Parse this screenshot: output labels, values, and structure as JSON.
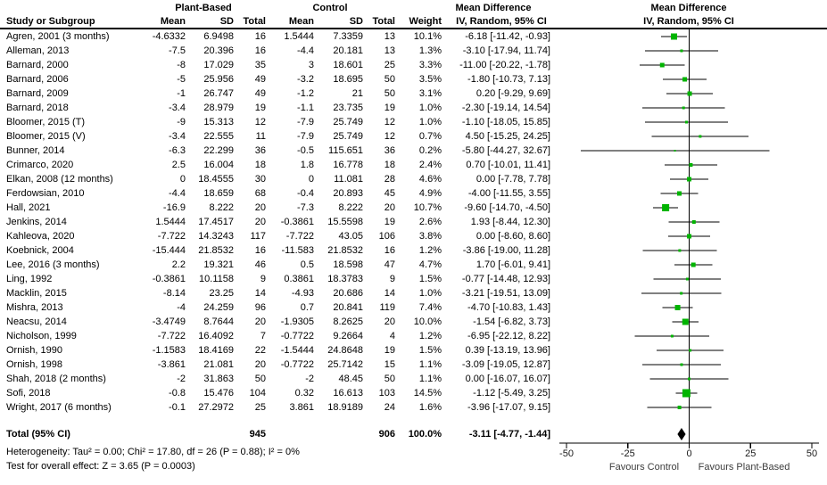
{
  "columns": {
    "study": "Study or Subgroup",
    "pb_group": "Plant-Based",
    "c_group": "Control",
    "mean": "Mean",
    "sd": "SD",
    "total": "Total",
    "weight": "Weight",
    "md_title": "Mean Difference",
    "md_sub": "IV, Random, 95% CI",
    "plot_title": "Mean Difference",
    "plot_sub": "IV, Random, 95% CI"
  },
  "totals": {
    "label": "Total (95% CI)",
    "pb_total": "945",
    "c_total": "906",
    "weight": "100.0%",
    "ci_text": "-3.11 [-4.77, -1.44]"
  },
  "footer": {
    "heterogeneity": "Heterogeneity: Tau² = 0.00; Chi² = 17.80, df = 26 (P = 0.88); I² = 0%",
    "overall_effect": "Test for overall effect: Z = 3.65 (P = 0.0003)",
    "favours_left": "Favours Control",
    "favours_right": "Favours Plant-Based"
  },
  "chart_data": {
    "type": "forest",
    "effect_measure": "Mean Difference, IV, Random, 95% CI",
    "x_axis": {
      "min": -50,
      "max": 50,
      "ticks": [
        -50,
        -25,
        0,
        25,
        50
      ],
      "tick_labels": [
        "-50",
        "-25",
        "0",
        "25",
        "50"
      ]
    },
    "marker_color": "#00b400",
    "line_color": "#000000",
    "studies": [
      {
        "name": "Agren, 2001 (3 months)",
        "pb_mean": "-4.6332",
        "pb_sd": "6.9498",
        "pb_n": "16",
        "c_mean": "1.5444",
        "c_sd": "7.3359",
        "c_n": "13",
        "weight": "10.1%",
        "ci_text": "-6.18 [-11.42, -0.93]",
        "md": -6.18,
        "lo": -11.42,
        "hi": -0.93,
        "w": 10.1
      },
      {
        "name": "Alleman, 2013",
        "pb_mean": "-7.5",
        "pb_sd": "20.396",
        "pb_n": "16",
        "c_mean": "-4.4",
        "c_sd": "20.181",
        "c_n": "13",
        "weight": "1.3%",
        "ci_text": "-3.10 [-17.94, 11.74]",
        "md": -3.1,
        "lo": -17.94,
        "hi": 11.74,
        "w": 1.3
      },
      {
        "name": "Barnard, 2000",
        "pb_mean": "-8",
        "pb_sd": "17.029",
        "pb_n": "35",
        "c_mean": "3",
        "c_sd": "18.601",
        "c_n": "25",
        "weight": "3.3%",
        "ci_text": "-11.00 [-20.22, -1.78]",
        "md": -11,
        "lo": -20.22,
        "hi": -1.78,
        "w": 3.3
      },
      {
        "name": "Barnard, 2006",
        "pb_mean": "-5",
        "pb_sd": "25.956",
        "pb_n": "49",
        "c_mean": "-3.2",
        "c_sd": "18.695",
        "c_n": "50",
        "weight": "3.5%",
        "ci_text": "-1.80 [-10.73, 7.13]",
        "md": -1.8,
        "lo": -10.73,
        "hi": 7.13,
        "w": 3.5
      },
      {
        "name": "Barnard, 2009",
        "pb_mean": "-1",
        "pb_sd": "26.747",
        "pb_n": "49",
        "c_mean": "-1.2",
        "c_sd": "21",
        "c_n": "50",
        "weight": "3.1%",
        "ci_text": "0.20 [-9.29, 9.69]",
        "md": 0.2,
        "lo": -9.29,
        "hi": 9.69,
        "w": 3.1
      },
      {
        "name": "Barnard, 2018",
        "pb_mean": "-3.4",
        "pb_sd": "28.979",
        "pb_n": "19",
        "c_mean": "-1.1",
        "c_sd": "23.735",
        "c_n": "19",
        "weight": "1.0%",
        "ci_text": "-2.30 [-19.14, 14.54]",
        "md": -2.3,
        "lo": -19.14,
        "hi": 14.54,
        "w": 1.0
      },
      {
        "name": "Bloomer, 2015 (T)",
        "pb_mean": "-9",
        "pb_sd": "15.313",
        "pb_n": "12",
        "c_mean": "-7.9",
        "c_sd": "25.749",
        "c_n": "12",
        "weight": "1.0%",
        "ci_text": "-1.10 [-18.05, 15.85]",
        "md": -1.1,
        "lo": -18.05,
        "hi": 15.85,
        "w": 1.0
      },
      {
        "name": "Bloomer, 2015 (V)",
        "pb_mean": "-3.4",
        "pb_sd": "22.555",
        "pb_n": "11",
        "c_mean": "-7.9",
        "c_sd": "25.749",
        "c_n": "12",
        "weight": "0.7%",
        "ci_text": "4.50 [-15.25, 24.25]",
        "md": 4.5,
        "lo": -15.25,
        "hi": 24.25,
        "w": 0.7
      },
      {
        "name": "Bunner, 2014",
        "pb_mean": "-6.3",
        "pb_sd": "22.299",
        "pb_n": "36",
        "c_mean": "-0.5",
        "c_sd": "115.651",
        "c_n": "36",
        "weight": "0.2%",
        "ci_text": "-5.80 [-44.27, 32.67]",
        "md": -5.8,
        "lo": -44.27,
        "hi": 32.67,
        "w": 0.2
      },
      {
        "name": "Crimarco, 2020",
        "pb_mean": "2.5",
        "pb_sd": "16.004",
        "pb_n": "18",
        "c_mean": "1.8",
        "c_sd": "16.778",
        "c_n": "18",
        "weight": "2.4%",
        "ci_text": "0.70 [-10.01, 11.41]",
        "md": 0.7,
        "lo": -10.01,
        "hi": 11.41,
        "w": 2.4
      },
      {
        "name": "Elkan, 2008 (12 months)",
        "pb_mean": "0",
        "pb_sd": "18.4555",
        "pb_n": "30",
        "c_mean": "0",
        "c_sd": "11.081",
        "c_n": "28",
        "weight": "4.6%",
        "ci_text": "0.00 [-7.78, 7.78]",
        "md": 0,
        "lo": -7.78,
        "hi": 7.78,
        "w": 4.6
      },
      {
        "name": "Ferdowsian, 2010",
        "pb_mean": "-4.4",
        "pb_sd": "18.659",
        "pb_n": "68",
        "c_mean": "-0.4",
        "c_sd": "20.893",
        "c_n": "45",
        "weight": "4.9%",
        "ci_text": "-4.00 [-11.55, 3.55]",
        "md": -4,
        "lo": -11.55,
        "hi": 3.55,
        "w": 4.9
      },
      {
        "name": "Hall, 2021",
        "pb_mean": "-16.9",
        "pb_sd": "8.222",
        "pb_n": "20",
        "c_mean": "-7.3",
        "c_sd": "8.222",
        "c_n": "20",
        "weight": "10.7%",
        "ci_text": "-9.60 [-14.70, -4.50]",
        "md": -9.6,
        "lo": -14.7,
        "hi": -4.5,
        "w": 10.7
      },
      {
        "name": "Jenkins, 2014",
        "pb_mean": "1.5444",
        "pb_sd": "17.4517",
        "pb_n": "20",
        "c_mean": "-0.3861",
        "c_sd": "15.5598",
        "c_n": "19",
        "weight": "2.6%",
        "ci_text": "1.93 [-8.44, 12.30]",
        "md": 1.93,
        "lo": -8.44,
        "hi": 12.3,
        "w": 2.6
      },
      {
        "name": "Kahleova, 2020",
        "pb_mean": "-7.722",
        "pb_sd": "14.3243",
        "pb_n": "117",
        "c_mean": "-7.722",
        "c_sd": "43.05",
        "c_n": "106",
        "weight": "3.8%",
        "ci_text": "0.00 [-8.60, 8.60]",
        "md": 0,
        "lo": -8.6,
        "hi": 8.6,
        "w": 3.8
      },
      {
        "name": "Koebnick, 2004",
        "pb_mean": "-15.444",
        "pb_sd": "21.8532",
        "pb_n": "16",
        "c_mean": "-11.583",
        "c_sd": "21.8532",
        "c_n": "16",
        "weight": "1.2%",
        "ci_text": "-3.86 [-19.00, 11.28]",
        "md": -3.86,
        "lo": -19,
        "hi": 11.28,
        "w": 1.2
      },
      {
        "name": "Lee, 2016 (3 months)",
        "pb_mean": "2.2",
        "pb_sd": "19.321",
        "pb_n": "46",
        "c_mean": "0.5",
        "c_sd": "18.598",
        "c_n": "47",
        "weight": "4.7%",
        "ci_text": "1.70 [-6.01, 9.41]",
        "md": 1.7,
        "lo": -6.01,
        "hi": 9.41,
        "w": 4.7
      },
      {
        "name": "Ling, 1992",
        "pb_mean": "-0.3861",
        "pb_sd": "10.1158",
        "pb_n": "9",
        "c_mean": "0.3861",
        "c_sd": "18.3783",
        "c_n": "9",
        "weight": "1.5%",
        "ci_text": "-0.77 [-14.48, 12.93]",
        "md": -0.77,
        "lo": -14.48,
        "hi": 12.93,
        "w": 1.5
      },
      {
        "name": "Macklin, 2015",
        "pb_mean": "-8.14",
        "pb_sd": "23.25",
        "pb_n": "14",
        "c_mean": "-4.93",
        "c_sd": "20.686",
        "c_n": "14",
        "weight": "1.0%",
        "ci_text": "-3.21 [-19.51, 13.09]",
        "md": -3.21,
        "lo": -19.51,
        "hi": 13.09,
        "w": 1.0
      },
      {
        "name": "Mishra, 2013",
        "pb_mean": "-4",
        "pb_sd": "24.259",
        "pb_n": "96",
        "c_mean": "0.7",
        "c_sd": "20.841",
        "c_n": "119",
        "weight": "7.4%",
        "ci_text": "-4.70 [-10.83, 1.43]",
        "md": -4.7,
        "lo": -10.83,
        "hi": 1.43,
        "w": 7.4
      },
      {
        "name": "Neacsu, 2014",
        "pb_mean": "-3.4749",
        "pb_sd": "8.7644",
        "pb_n": "20",
        "c_mean": "-1.9305",
        "c_sd": "8.2625",
        "c_n": "20",
        "weight": "10.0%",
        "ci_text": "-1.54 [-6.82, 3.73]",
        "md": -1.54,
        "lo": -6.82,
        "hi": 3.73,
        "w": 10.0
      },
      {
        "name": "Nicholson, 1999",
        "pb_mean": "-7.722",
        "pb_sd": "16.4092",
        "pb_n": "7",
        "c_mean": "-0.7722",
        "c_sd": "9.2664",
        "c_n": "4",
        "weight": "1.2%",
        "ci_text": "-6.95 [-22.12, 8.22]",
        "md": -6.95,
        "lo": -22.12,
        "hi": 8.22,
        "w": 1.2
      },
      {
        "name": "Ornish, 1990",
        "pb_mean": "-1.1583",
        "pb_sd": "18.4169",
        "pb_n": "22",
        "c_mean": "-1.5444",
        "c_sd": "24.8648",
        "c_n": "19",
        "weight": "1.5%",
        "ci_text": "0.39 [-13.19, 13.96]",
        "md": 0.39,
        "lo": -13.19,
        "hi": 13.96,
        "w": 1.5
      },
      {
        "name": "Ornish, 1998",
        "pb_mean": "-3.861",
        "pb_sd": "21.081",
        "pb_n": "20",
        "c_mean": "-0.7722",
        "c_sd": "25.7142",
        "c_n": "15",
        "weight": "1.1%",
        "ci_text": "-3.09 [-19.05, 12.87]",
        "md": -3.09,
        "lo": -19.05,
        "hi": 12.87,
        "w": 1.1
      },
      {
        "name": "Shah, 2018 (2 months)",
        "pb_mean": "-2",
        "pb_sd": "31.863",
        "pb_n": "50",
        "c_mean": "-2",
        "c_sd": "48.45",
        "c_n": "50",
        "weight": "1.1%",
        "ci_text": "0.00 [-16.07, 16.07]",
        "md": 0,
        "lo": -16.07,
        "hi": 16.07,
        "w": 1.1
      },
      {
        "name": "Sofi, 2018",
        "pb_mean": "-0.8",
        "pb_sd": "15.476",
        "pb_n": "104",
        "c_mean": "0.32",
        "c_sd": "16.613",
        "c_n": "103",
        "weight": "14.5%",
        "ci_text": "-1.12 [-5.49, 3.25]",
        "md": -1.12,
        "lo": -5.49,
        "hi": 3.25,
        "w": 14.5
      },
      {
        "name": "Wright, 2017 (6 months)",
        "pb_mean": "-0.1",
        "pb_sd": "27.2972",
        "pb_n": "25",
        "c_mean": "3.861",
        "c_sd": "18.9189",
        "c_n": "24",
        "weight": "1.6%",
        "ci_text": "-3.96 [-17.07, 9.15]",
        "md": -3.96,
        "lo": -17.07,
        "hi": 9.15,
        "w": 1.6
      }
    ],
    "summary": {
      "md": -3.11,
      "lo": -4.77,
      "hi": -1.44
    }
  }
}
